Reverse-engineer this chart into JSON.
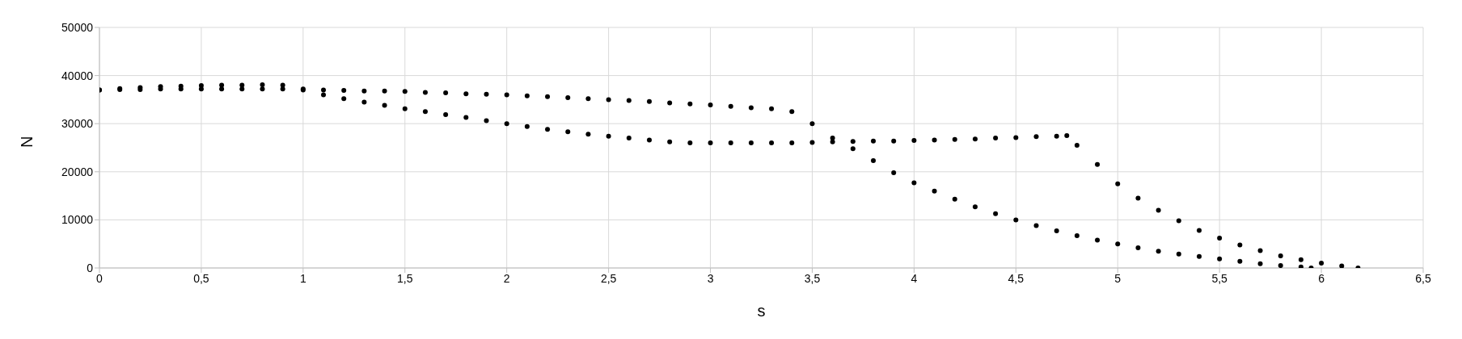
{
  "chart_data": {
    "type": "scatter",
    "xlabel": "s",
    "ylabel": "N",
    "xlim": [
      0,
      6.5
    ],
    "xticks": [
      0,
      {
        "value": 0.5,
        "label": "0,5"
      },
      1,
      {
        "value": 1.5,
        "label": "1,5"
      },
      2,
      {
        "value": 2.5,
        "label": "2,5"
      },
      3,
      {
        "value": 3.5,
        "label": "3,5"
      },
      4,
      {
        "value": 4.5,
        "label": "4,5"
      },
      5,
      {
        "value": 5.5,
        "label": "5,5"
      },
      6,
      {
        "value": 6.5,
        "label": "6,5"
      }
    ],
    "ylim": [
      0,
      50000
    ],
    "yticks": [
      0,
      10000,
      20000,
      30000,
      40000,
      50000
    ],
    "grid": true,
    "marker": "circle",
    "legend": false,
    "series": [
      {
        "color": "#000000",
        "x": [
          0,
          0.1,
          0.2,
          0.3,
          0.4,
          0.5,
          0.6,
          0.7,
          0.8,
          0.9,
          1.0,
          1.1,
          1.2,
          1.3,
          1.4,
          1.5,
          1.6,
          1.7,
          1.8,
          1.9,
          2.0,
          2.1,
          2.2,
          2.3,
          2.4,
          2.5,
          2.6,
          2.7,
          2.8,
          2.9,
          3.0,
          3.1,
          3.2,
          3.3,
          3.4,
          3.5,
          3.6,
          3.7,
          3.8,
          3.9,
          4.0,
          4.1,
          4.2,
          4.3,
          4.4,
          4.5,
          4.6,
          4.7,
          4.8,
          4.9,
          5.0,
          5.1,
          5.2,
          5.3,
          5.4,
          5.5,
          5.6,
          5.7,
          5.8,
          5.9,
          5.95
        ],
        "values": [
          37000,
          37300,
          37500,
          37700,
          37800,
          37900,
          38000,
          38000,
          38100,
          38000,
          37200,
          37000,
          36900,
          36800,
          36800,
          36700,
          36500,
          36400,
          36200,
          36100,
          36000,
          35800,
          35600,
          35400,
          35200,
          35000,
          34800,
          34600,
          34300,
          34100,
          33900,
          33600,
          33300,
          33100,
          32500,
          30000,
          27000,
          24800,
          22300,
          19800,
          17700,
          16000,
          14300,
          12700,
          11300,
          10000,
          8800,
          7700,
          6700,
          5800,
          5000,
          4200,
          3500,
          2900,
          2400,
          1900,
          1400,
          900,
          500,
          200,
          0
        ]
      },
      {
        "color": "#000000",
        "x": [
          0,
          0.1,
          0.2,
          0.3,
          0.4,
          0.5,
          0.6,
          0.7,
          0.8,
          0.9,
          1.0,
          1.1,
          1.2,
          1.3,
          1.4,
          1.5,
          1.6,
          1.7,
          1.8,
          1.9,
          2.0,
          2.1,
          2.2,
          2.3,
          2.4,
          2.5,
          2.6,
          2.7,
          2.8,
          2.9,
          3.0,
          3.1,
          3.2,
          3.3,
          3.4,
          3.5,
          3.6,
          3.7,
          3.8,
          3.9,
          4.0,
          4.1,
          4.2,
          4.3,
          4.4,
          4.5,
          4.6,
          4.7,
          4.75,
          4.8,
          4.9,
          5.0,
          5.1,
          5.2,
          5.3,
          5.4,
          5.5,
          5.6,
          5.7,
          5.8,
          5.9,
          6.0,
          6.1,
          6.18
        ],
        "values": [
          37000,
          37100,
          37100,
          37200,
          37200,
          37200,
          37200,
          37200,
          37200,
          37200,
          37000,
          36000,
          35200,
          34500,
          33800,
          33100,
          32500,
          31900,
          31300,
          30600,
          30000,
          29400,
          28800,
          28300,
          27800,
          27400,
          27000,
          26600,
          26200,
          26000,
          26000,
          26000,
          26000,
          26000,
          26000,
          26100,
          26200,
          26300,
          26400,
          26400,
          26500,
          26600,
          26700,
          26800,
          27000,
          27100,
          27300,
          27400,
          27500,
          25500,
          21500,
          17500,
          14500,
          12000,
          9800,
          7800,
          6200,
          4800,
          3600,
          2500,
          1700,
          1000,
          400,
          0
        ]
      }
    ]
  }
}
